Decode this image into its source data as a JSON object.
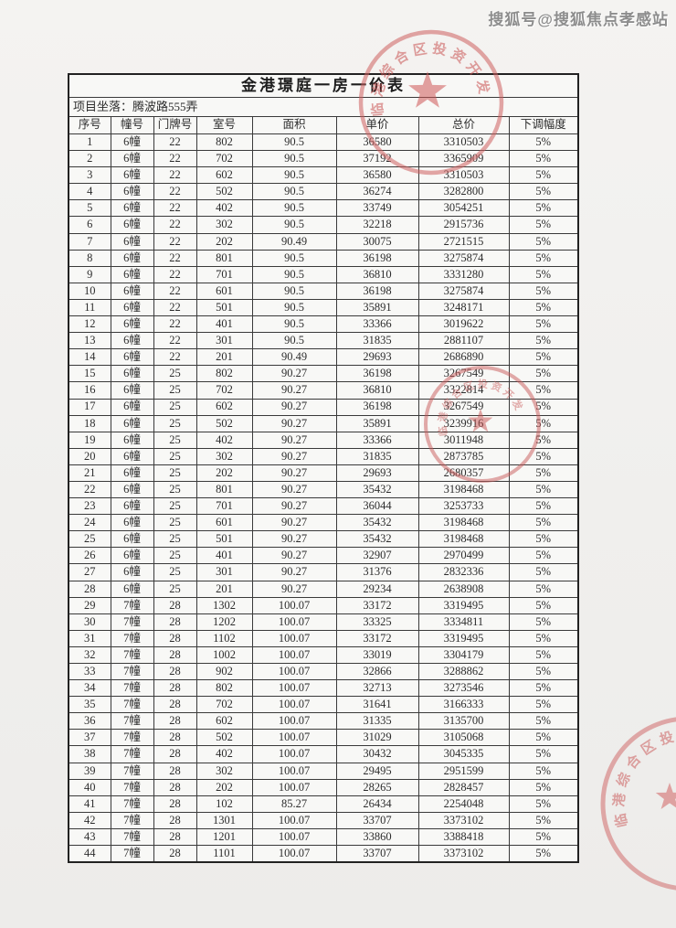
{
  "watermark": {
    "text": "搜狐号@搜狐焦点孝感站"
  },
  "document": {
    "title": "金港璟庭一房一价表",
    "location_row": "项目坐落：腾波路555弄"
  },
  "table": {
    "columns": [
      "序号",
      "幢号",
      "门牌号",
      "室号",
      "面积",
      "单价",
      "总价",
      "下调幅度"
    ],
    "rows": [
      [
        "1",
        "6幢",
        "22",
        "802",
        "90.5",
        "36580",
        "3310503",
        "5%"
      ],
      [
        "2",
        "6幢",
        "22",
        "702",
        "90.5",
        "37192",
        "3365909",
        "5%"
      ],
      [
        "3",
        "6幢",
        "22",
        "602",
        "90.5",
        "36580",
        "3310503",
        "5%"
      ],
      [
        "4",
        "6幢",
        "22",
        "502",
        "90.5",
        "36274",
        "3282800",
        "5%"
      ],
      [
        "5",
        "6幢",
        "22",
        "402",
        "90.5",
        "33749",
        "3054251",
        "5%"
      ],
      [
        "6",
        "6幢",
        "22",
        "302",
        "90.5",
        "32218",
        "2915736",
        "5%"
      ],
      [
        "7",
        "6幢",
        "22",
        "202",
        "90.49",
        "30075",
        "2721515",
        "5%"
      ],
      [
        "8",
        "6幢",
        "22",
        "801",
        "90.5",
        "36198",
        "3275874",
        "5%"
      ],
      [
        "9",
        "6幢",
        "22",
        "701",
        "90.5",
        "36810",
        "3331280",
        "5%"
      ],
      [
        "10",
        "6幢",
        "22",
        "601",
        "90.5",
        "36198",
        "3275874",
        "5%"
      ],
      [
        "11",
        "6幢",
        "22",
        "501",
        "90.5",
        "35891",
        "3248171",
        "5%"
      ],
      [
        "12",
        "6幢",
        "22",
        "401",
        "90.5",
        "33366",
        "3019622",
        "5%"
      ],
      [
        "13",
        "6幢",
        "22",
        "301",
        "90.5",
        "31835",
        "2881107",
        "5%"
      ],
      [
        "14",
        "6幢",
        "22",
        "201",
        "90.49",
        "29693",
        "2686890",
        "5%"
      ],
      [
        "15",
        "6幢",
        "25",
        "802",
        "90.27",
        "36198",
        "3267549",
        "5%"
      ],
      [
        "16",
        "6幢",
        "25",
        "702",
        "90.27",
        "36810",
        "3322814",
        "5%"
      ],
      [
        "17",
        "6幢",
        "25",
        "602",
        "90.27",
        "36198",
        "3267549",
        "5%"
      ],
      [
        "18",
        "6幢",
        "25",
        "502",
        "90.27",
        "35891",
        "3239916",
        "5%"
      ],
      [
        "19",
        "6幢",
        "25",
        "402",
        "90.27",
        "33366",
        "3011948",
        "5%"
      ],
      [
        "20",
        "6幢",
        "25",
        "302",
        "90.27",
        "31835",
        "2873785",
        "5%"
      ],
      [
        "21",
        "6幢",
        "25",
        "202",
        "90.27",
        "29693",
        "2680357",
        "5%"
      ],
      [
        "22",
        "6幢",
        "25",
        "801",
        "90.27",
        "35432",
        "3198468",
        "5%"
      ],
      [
        "23",
        "6幢",
        "25",
        "701",
        "90.27",
        "36044",
        "3253733",
        "5%"
      ],
      [
        "24",
        "6幢",
        "25",
        "601",
        "90.27",
        "35432",
        "3198468",
        "5%"
      ],
      [
        "25",
        "6幢",
        "25",
        "501",
        "90.27",
        "35432",
        "3198468",
        "5%"
      ],
      [
        "26",
        "6幢",
        "25",
        "401",
        "90.27",
        "32907",
        "2970499",
        "5%"
      ],
      [
        "27",
        "6幢",
        "25",
        "301",
        "90.27",
        "31376",
        "2832336",
        "5%"
      ],
      [
        "28",
        "6幢",
        "25",
        "201",
        "90.27",
        "29234",
        "2638908",
        "5%"
      ],
      [
        "29",
        "7幢",
        "28",
        "1302",
        "100.07",
        "33172",
        "3319495",
        "5%"
      ],
      [
        "30",
        "7幢",
        "28",
        "1202",
        "100.07",
        "33325",
        "3334811",
        "5%"
      ],
      [
        "31",
        "7幢",
        "28",
        "1102",
        "100.07",
        "33172",
        "3319495",
        "5%"
      ],
      [
        "32",
        "7幢",
        "28",
        "1002",
        "100.07",
        "33019",
        "3304179",
        "5%"
      ],
      [
        "33",
        "7幢",
        "28",
        "902",
        "100.07",
        "32866",
        "3288862",
        "5%"
      ],
      [
        "34",
        "7幢",
        "28",
        "802",
        "100.07",
        "32713",
        "3273546",
        "5%"
      ],
      [
        "35",
        "7幢",
        "28",
        "702",
        "100.07",
        "31641",
        "3166333",
        "5%"
      ],
      [
        "36",
        "7幢",
        "28",
        "602",
        "100.07",
        "31335",
        "3135700",
        "5%"
      ],
      [
        "37",
        "7幢",
        "28",
        "502",
        "100.07",
        "31029",
        "3105068",
        "5%"
      ],
      [
        "38",
        "7幢",
        "28",
        "402",
        "100.07",
        "30432",
        "3045335",
        "5%"
      ],
      [
        "39",
        "7幢",
        "28",
        "302",
        "100.07",
        "29495",
        "2951599",
        "5%"
      ],
      [
        "40",
        "7幢",
        "28",
        "202",
        "100.07",
        "28265",
        "2828457",
        "5%"
      ],
      [
        "41",
        "7幢",
        "28",
        "102",
        "85.27",
        "26434",
        "2254048",
        "5%"
      ],
      [
        "42",
        "7幢",
        "28",
        "1301",
        "100.07",
        "33707",
        "3373102",
        "5%"
      ],
      [
        "43",
        "7幢",
        "28",
        "1201",
        "100.07",
        "33860",
        "3388418",
        "5%"
      ],
      [
        "44",
        "7幢",
        "28",
        "1101",
        "100.07",
        "33707",
        "3373102",
        "5%"
      ]
    ]
  },
  "stamps": {
    "arc_text": "临港综合区投资开发",
    "color": "#c85f5f"
  }
}
